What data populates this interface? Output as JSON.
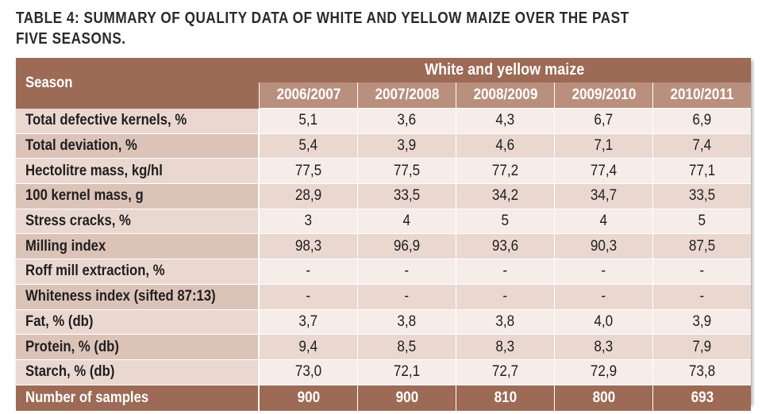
{
  "title": "TABLE 4: SUMMARY OF QUALITY DATA OF WHITE AND YELLOW MAIZE OVER THE PAST FIVE SEASONS.",
  "table": {
    "season_header": "Season",
    "group_header": "White and yellow maize",
    "years": [
      "2006/2007",
      "2007/2008",
      "2008/2009",
      "2009/2010",
      "2010/2011"
    ],
    "rows": [
      {
        "label": "Total defective kernels, %",
        "values": [
          "5,1",
          "3,6",
          "4,3",
          "6,7",
          "6,9"
        ]
      },
      {
        "label": "Total deviation, %",
        "values": [
          "5,4",
          "3,9",
          "4,6",
          "7,1",
          "7,4"
        ]
      },
      {
        "label": "Hectolitre mass, kg/hl",
        "values": [
          "77,5",
          "77,5",
          "77,2",
          "77,4",
          "77,1"
        ]
      },
      {
        "label": "100 kernel mass, g",
        "values": [
          "28,9",
          "33,5",
          "34,2",
          "34,7",
          "33,5"
        ]
      },
      {
        "label": "Stress cracks, %",
        "values": [
          "3",
          "4",
          "5",
          "4",
          "5"
        ]
      },
      {
        "label": "Milling index",
        "values": [
          "98,3",
          "96,9",
          "93,6",
          "90,3",
          "87,5"
        ]
      },
      {
        "label": "Roff mill extraction, %",
        "values": [
          "-",
          "-",
          "-",
          "-",
          "-"
        ]
      },
      {
        "label": "Whiteness index (sifted 87:13)",
        "values": [
          "-",
          "-",
          "-",
          "-",
          "-"
        ]
      },
      {
        "label": "Fat, % (db)",
        "values": [
          "3,7",
          "3,8",
          "3,8",
          "4,0",
          "3,9"
        ]
      },
      {
        "label": "Protein, % (db)",
        "values": [
          "9,4",
          "8,5",
          "8,3",
          "8,3",
          "7,9"
        ]
      },
      {
        "label": "Starch, % (db)",
        "values": [
          "73,0",
          "72,1",
          "72,7",
          "72,9",
          "73,8"
        ]
      }
    ],
    "footer": {
      "label": "Number of samples",
      "values": [
        "900",
        "900",
        "810",
        "800",
        "693"
      ]
    }
  },
  "colors": {
    "header_brown": "#9c6a55",
    "year_header": "#b98f7d",
    "row_light": "#f6ece8",
    "row_dark": "#ead8d0"
  }
}
